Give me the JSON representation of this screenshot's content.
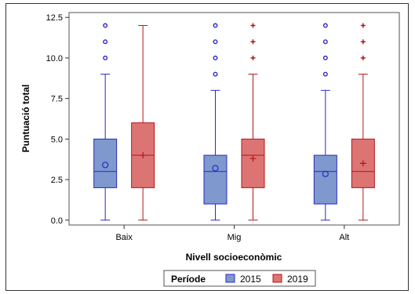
{
  "chart_data": {
    "type": "boxplot",
    "xlabel": "Nivell socioeconòmic",
    "ylabel": "Puntuació total",
    "categories": [
      "Baix",
      "Mig",
      "Alt"
    ],
    "ylim": [
      -0.3,
      12.8
    ],
    "yticks": [
      "0.0",
      "2.5",
      "5.0",
      "7.5",
      "10.0",
      "12.5"
    ],
    "ytick_values": [
      0,
      2.5,
      5,
      7.5,
      10,
      12.5
    ],
    "legend": {
      "title": "Període",
      "position": "bottom-center"
    },
    "series": [
      {
        "name": "2015",
        "fill": "#7f98cd",
        "stroke": "#2929c4",
        "boxes": [
          {
            "min": 0,
            "q1": 2,
            "median": 3,
            "q3": 5,
            "max": 9,
            "mean": 3.4,
            "outliers": [
              10,
              11,
              12
            ]
          },
          {
            "min": 0,
            "q1": 1,
            "median": 3,
            "q3": 4,
            "max": 8,
            "mean": 3.2,
            "outliers": [
              9,
              10,
              11,
              12
            ]
          },
          {
            "min": 0,
            "q1": 1,
            "median": 3,
            "q3": 4,
            "max": 8,
            "mean": 2.85,
            "outliers": [
              9,
              10,
              11,
              12
            ]
          }
        ]
      },
      {
        "name": "2019",
        "fill": "#dd7474",
        "stroke": "#b31515",
        "boxes": [
          {
            "min": 0,
            "q1": 2,
            "median": 4,
            "q3": 6,
            "max": 12,
            "mean": 4.0,
            "outliers": []
          },
          {
            "min": 0,
            "q1": 2,
            "median": 4,
            "q3": 5,
            "max": 9,
            "mean": 3.8,
            "outliers": [
              10,
              11,
              12
            ]
          },
          {
            "min": 0,
            "q1": 2,
            "median": 3,
            "q3": 5,
            "max": 9,
            "mean": 3.5,
            "outliers": [
              10,
              11,
              12
            ]
          }
        ]
      }
    ]
  }
}
